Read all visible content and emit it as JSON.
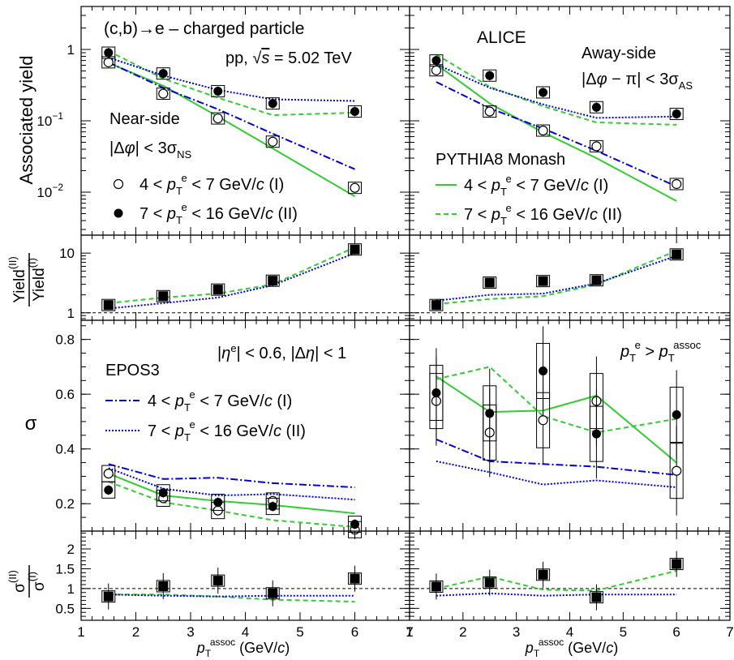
{
  "figure": {
    "top_text": {
      "title": "(c,b)→e – charged particle",
      "energy": "pp, √s = 5.02 TeV",
      "alice": "ALICE",
      "near_side_1": "Near-side",
      "near_side_2": "|Δφ| < 3σ_NS",
      "away_side_1": "Away-side",
      "away_side_2": "|Δφ − π| < 3σ_AS",
      "pythia": "PYTHIA8 Monash",
      "leg_open": "4 < p_T^e < 7 GeV/c (I)",
      "leg_closed": "7 < p_T^e < 16 GeV/c (II)",
      "leg_p8_solid": "4 < p_T^e < 7 GeV/c (I)",
      "leg_p8_dashed": "7 < p_T^e < 16 GeV/c (II)"
    },
    "sigma_text": {
      "cuts": "|η^e| < 0.6, |Δη| < 1",
      "epos": "EPOS3",
      "leg_epos_dashdot": "4 < p_T^e < 7 GeV/c (I)",
      "leg_epos_dotted": "7 < p_T^e < 16 GeV/c (II)",
      "pt_cond": "p_T^e > p_T^assoc"
    },
    "axis_labels": {
      "y_top": "Associated yield",
      "y_ratio1": "Yield(II)/Yield(I)",
      "y_sigma": "σ",
      "y_ratio2": "σ(II)/σ(I)",
      "x": "p_T^assoc (GeV/c)"
    },
    "colors": {
      "data": "#000000",
      "pythia": "#33cc33",
      "epos": "#0000dd"
    }
  },
  "chart_data": [
    {
      "type": "scatter",
      "panel": "near-side associated yield",
      "yscale": "log",
      "ylim": [
        0.0025,
        4
      ],
      "xlim": [
        1,
        7
      ],
      "x": [
        1.5,
        2.5,
        3.5,
        4.5,
        6
      ],
      "series": [
        {
          "name": "4 < p_T^e < 7 GeV/c (I)",
          "style": "data-open",
          "values": [
            0.66,
            0.24,
            0.108,
            0.051,
            0.0115
          ]
        },
        {
          "name": "7 < p_T^e < 16 GeV/c (II)",
          "style": "data-closed",
          "values": [
            0.9,
            0.46,
            0.26,
            0.175,
            0.135
          ]
        },
        {
          "name": "PYTHIA8 (I)",
          "style": "pythia-solid",
          "values": [
            0.65,
            0.31,
            0.115,
            0.041,
            0.0087
          ]
        },
        {
          "name": "PYTHIA8 (II)",
          "style": "pythia-dashed",
          "values": [
            0.95,
            0.39,
            0.21,
            0.12,
            0.13
          ]
        },
        {
          "name": "EPOS3 (I)",
          "style": "epos-dashdot",
          "values": [
            0.66,
            0.29,
            0.145,
            0.066,
            0.021
          ]
        },
        {
          "name": "EPOS3 (II)",
          "style": "epos-dotted",
          "values": [
            0.77,
            0.43,
            0.27,
            0.2,
            0.19
          ]
        }
      ]
    },
    {
      "type": "scatter",
      "panel": "away-side associated yield",
      "yscale": "log",
      "ylim": [
        0.0025,
        4
      ],
      "xlim": [
        1,
        7
      ],
      "x": [
        1.5,
        2.5,
        3.5,
        4.5,
        6
      ],
      "series": [
        {
          "name": "4 < p_T^e < 7 GeV/c (I)",
          "style": "data-open",
          "values": [
            0.51,
            0.135,
            0.073,
            0.044,
            0.013
          ]
        },
        {
          "name": "7 < p_T^e < 16 GeV/c (II)",
          "style": "data-closed",
          "values": [
            0.7,
            0.43,
            0.25,
            0.155,
            0.125
          ]
        },
        {
          "name": "PYTHIA8 (I)",
          "style": "pythia-solid",
          "values": [
            0.62,
            0.175,
            0.069,
            0.03,
            0.0075
          ]
        },
        {
          "name": "PYTHIA8 (II)",
          "style": "pythia-dashed",
          "values": [
            0.85,
            0.3,
            0.16,
            0.095,
            0.088
          ]
        },
        {
          "name": "EPOS3 (I)",
          "style": "epos-dashdot",
          "values": [
            0.35,
            0.15,
            0.078,
            0.038,
            0.012
          ]
        },
        {
          "name": "EPOS3 (II)",
          "style": "epos-dotted",
          "values": [
            0.62,
            0.29,
            0.17,
            0.11,
            0.115
          ]
        }
      ]
    },
    {
      "type": "scatter",
      "panel": "near-side yield ratio",
      "yscale": "log",
      "ylim": [
        0.75,
        20
      ],
      "xlim": [
        1,
        7
      ],
      "x": [
        1.5,
        2.5,
        3.5,
        4.5,
        6
      ],
      "series": [
        {
          "name": "data ratio",
          "style": "data-square",
          "values": [
            1.35,
            1.9,
            2.45,
            3.45,
            11.5
          ]
        },
        {
          "name": "PYTHIA8 ratio",
          "style": "pythia-dashed",
          "values": [
            1.45,
            1.8,
            2.1,
            3.0,
            12.5
          ]
        },
        {
          "name": "EPOS3 ratio",
          "style": "epos-dotted",
          "values": [
            1.18,
            1.45,
            1.8,
            2.9,
            10.0
          ]
        }
      ]
    },
    {
      "type": "scatter",
      "panel": "away-side yield ratio",
      "yscale": "log",
      "ylim": [
        0.75,
        20
      ],
      "xlim": [
        1,
        7
      ],
      "x": [
        1.5,
        2.5,
        3.5,
        4.5,
        6
      ],
      "series": [
        {
          "name": "data ratio",
          "style": "data-square",
          "values": [
            1.35,
            3.2,
            3.4,
            3.5,
            9.5
          ]
        },
        {
          "name": "PYTHIA8 ratio",
          "style": "pythia-dashed",
          "values": [
            1.4,
            1.7,
            1.9,
            3.0,
            11.0
          ]
        },
        {
          "name": "EPOS3 ratio",
          "style": "epos-dotted",
          "values": [
            1.6,
            2.0,
            2.1,
            3.1,
            9.0
          ]
        }
      ]
    },
    {
      "type": "scatter",
      "panel": "near-side sigma",
      "yscale": "linear",
      "ylim": [
        0.1,
        0.87
      ],
      "xlim": [
        1,
        7
      ],
      "x": [
        1.5,
        2.5,
        3.5,
        4.5,
        6
      ],
      "series": [
        {
          "name": "4 < p_T^e < 7 GeV/c (I)",
          "style": "data-open",
          "values": [
            0.31,
            0.22,
            0.175,
            0.21,
            0.105
          ]
        },
        {
          "name": "7 < p_T^e < 16 GeV/c (II)",
          "style": "data-closed",
          "values": [
            0.25,
            0.24,
            0.205,
            0.19,
            0.125
          ]
        },
        {
          "name": "PYTHIA8 (I)",
          "style": "pythia-solid",
          "values": [
            0.31,
            0.23,
            0.21,
            0.195,
            0.165
          ]
        },
        {
          "name": "PYTHIA8 (II)",
          "style": "pythia-dashed",
          "values": [
            0.28,
            0.205,
            0.175,
            0.14,
            0.115
          ]
        },
        {
          "name": "EPOS3 (I)",
          "style": "epos-dashdot",
          "values": [
            0.345,
            0.29,
            0.295,
            0.275,
            0.26
          ]
        },
        {
          "name": "EPOS3 (II)",
          "style": "epos-dotted",
          "values": [
            0.33,
            0.255,
            0.23,
            0.235,
            0.215
          ]
        }
      ]
    },
    {
      "type": "scatter",
      "panel": "away-side sigma",
      "yscale": "linear",
      "ylim": [
        0.1,
        0.87
      ],
      "xlim": [
        1,
        7
      ],
      "x": [
        1.5,
        2.5,
        3.5,
        4.5,
        6
      ],
      "series": [
        {
          "name": "4 < p_T^e < 7 GeV/c (I)",
          "style": "data-open",
          "values": [
            0.575,
            0.46,
            0.505,
            0.575,
            0.32
          ]
        },
        {
          "name": "7 < p_T^e < 16 GeV/c (II)",
          "style": "data-closed",
          "values": [
            0.605,
            0.53,
            0.685,
            0.455,
            0.525
          ]
        },
        {
          "name": "PYTHIA8 (I)",
          "style": "pythia-solid",
          "values": [
            0.665,
            0.535,
            0.54,
            0.595,
            0.35
          ]
        },
        {
          "name": "PYTHIA8 (II)",
          "style": "pythia-dashed",
          "values": [
            0.655,
            0.7,
            0.52,
            0.46,
            0.51
          ]
        },
        {
          "name": "EPOS3 (I)",
          "style": "epos-dashdot",
          "values": [
            0.435,
            0.355,
            0.345,
            0.335,
            0.305
          ]
        },
        {
          "name": "EPOS3 (II)",
          "style": "epos-dotted",
          "values": [
            0.355,
            0.315,
            0.27,
            0.285,
            0.26
          ]
        }
      ]
    },
    {
      "type": "scatter",
      "panel": "near-side sigma ratio",
      "yscale": "linear",
      "ylim": [
        0.2,
        2.45
      ],
      "xlim": [
        1,
        7
      ],
      "x": [
        1.5,
        2.5,
        3.5,
        4.5,
        6
      ],
      "series": [
        {
          "name": "data ratio",
          "style": "data-square",
          "values": [
            0.8,
            1.06,
            1.2,
            0.88,
            1.25
          ]
        },
        {
          "name": "PYTHIA8 ratio",
          "style": "pythia-dashed",
          "values": [
            0.85,
            0.85,
            0.8,
            0.72,
            0.67
          ]
        },
        {
          "name": "EPOS3 ratio",
          "style": "epos-dotted",
          "values": [
            0.85,
            0.82,
            0.8,
            0.82,
            0.82
          ]
        }
      ]
    },
    {
      "type": "scatter",
      "panel": "away-side sigma ratio",
      "yscale": "linear",
      "ylim": [
        0.2,
        2.45
      ],
      "xlim": [
        1,
        7
      ],
      "x": [
        1.5,
        2.5,
        3.5,
        4.5,
        6
      ],
      "series": [
        {
          "name": "data ratio",
          "style": "data-square",
          "values": [
            1.05,
            1.15,
            1.35,
            0.78,
            1.62
          ]
        },
        {
          "name": "PYTHIA8 ratio",
          "style": "pythia-dashed",
          "values": [
            1.0,
            1.3,
            0.97,
            0.95,
            1.45
          ]
        },
        {
          "name": "EPOS3 ratio",
          "style": "epos-dotted",
          "values": [
            0.82,
            0.88,
            0.82,
            0.85,
            0.85
          ]
        }
      ]
    }
  ]
}
